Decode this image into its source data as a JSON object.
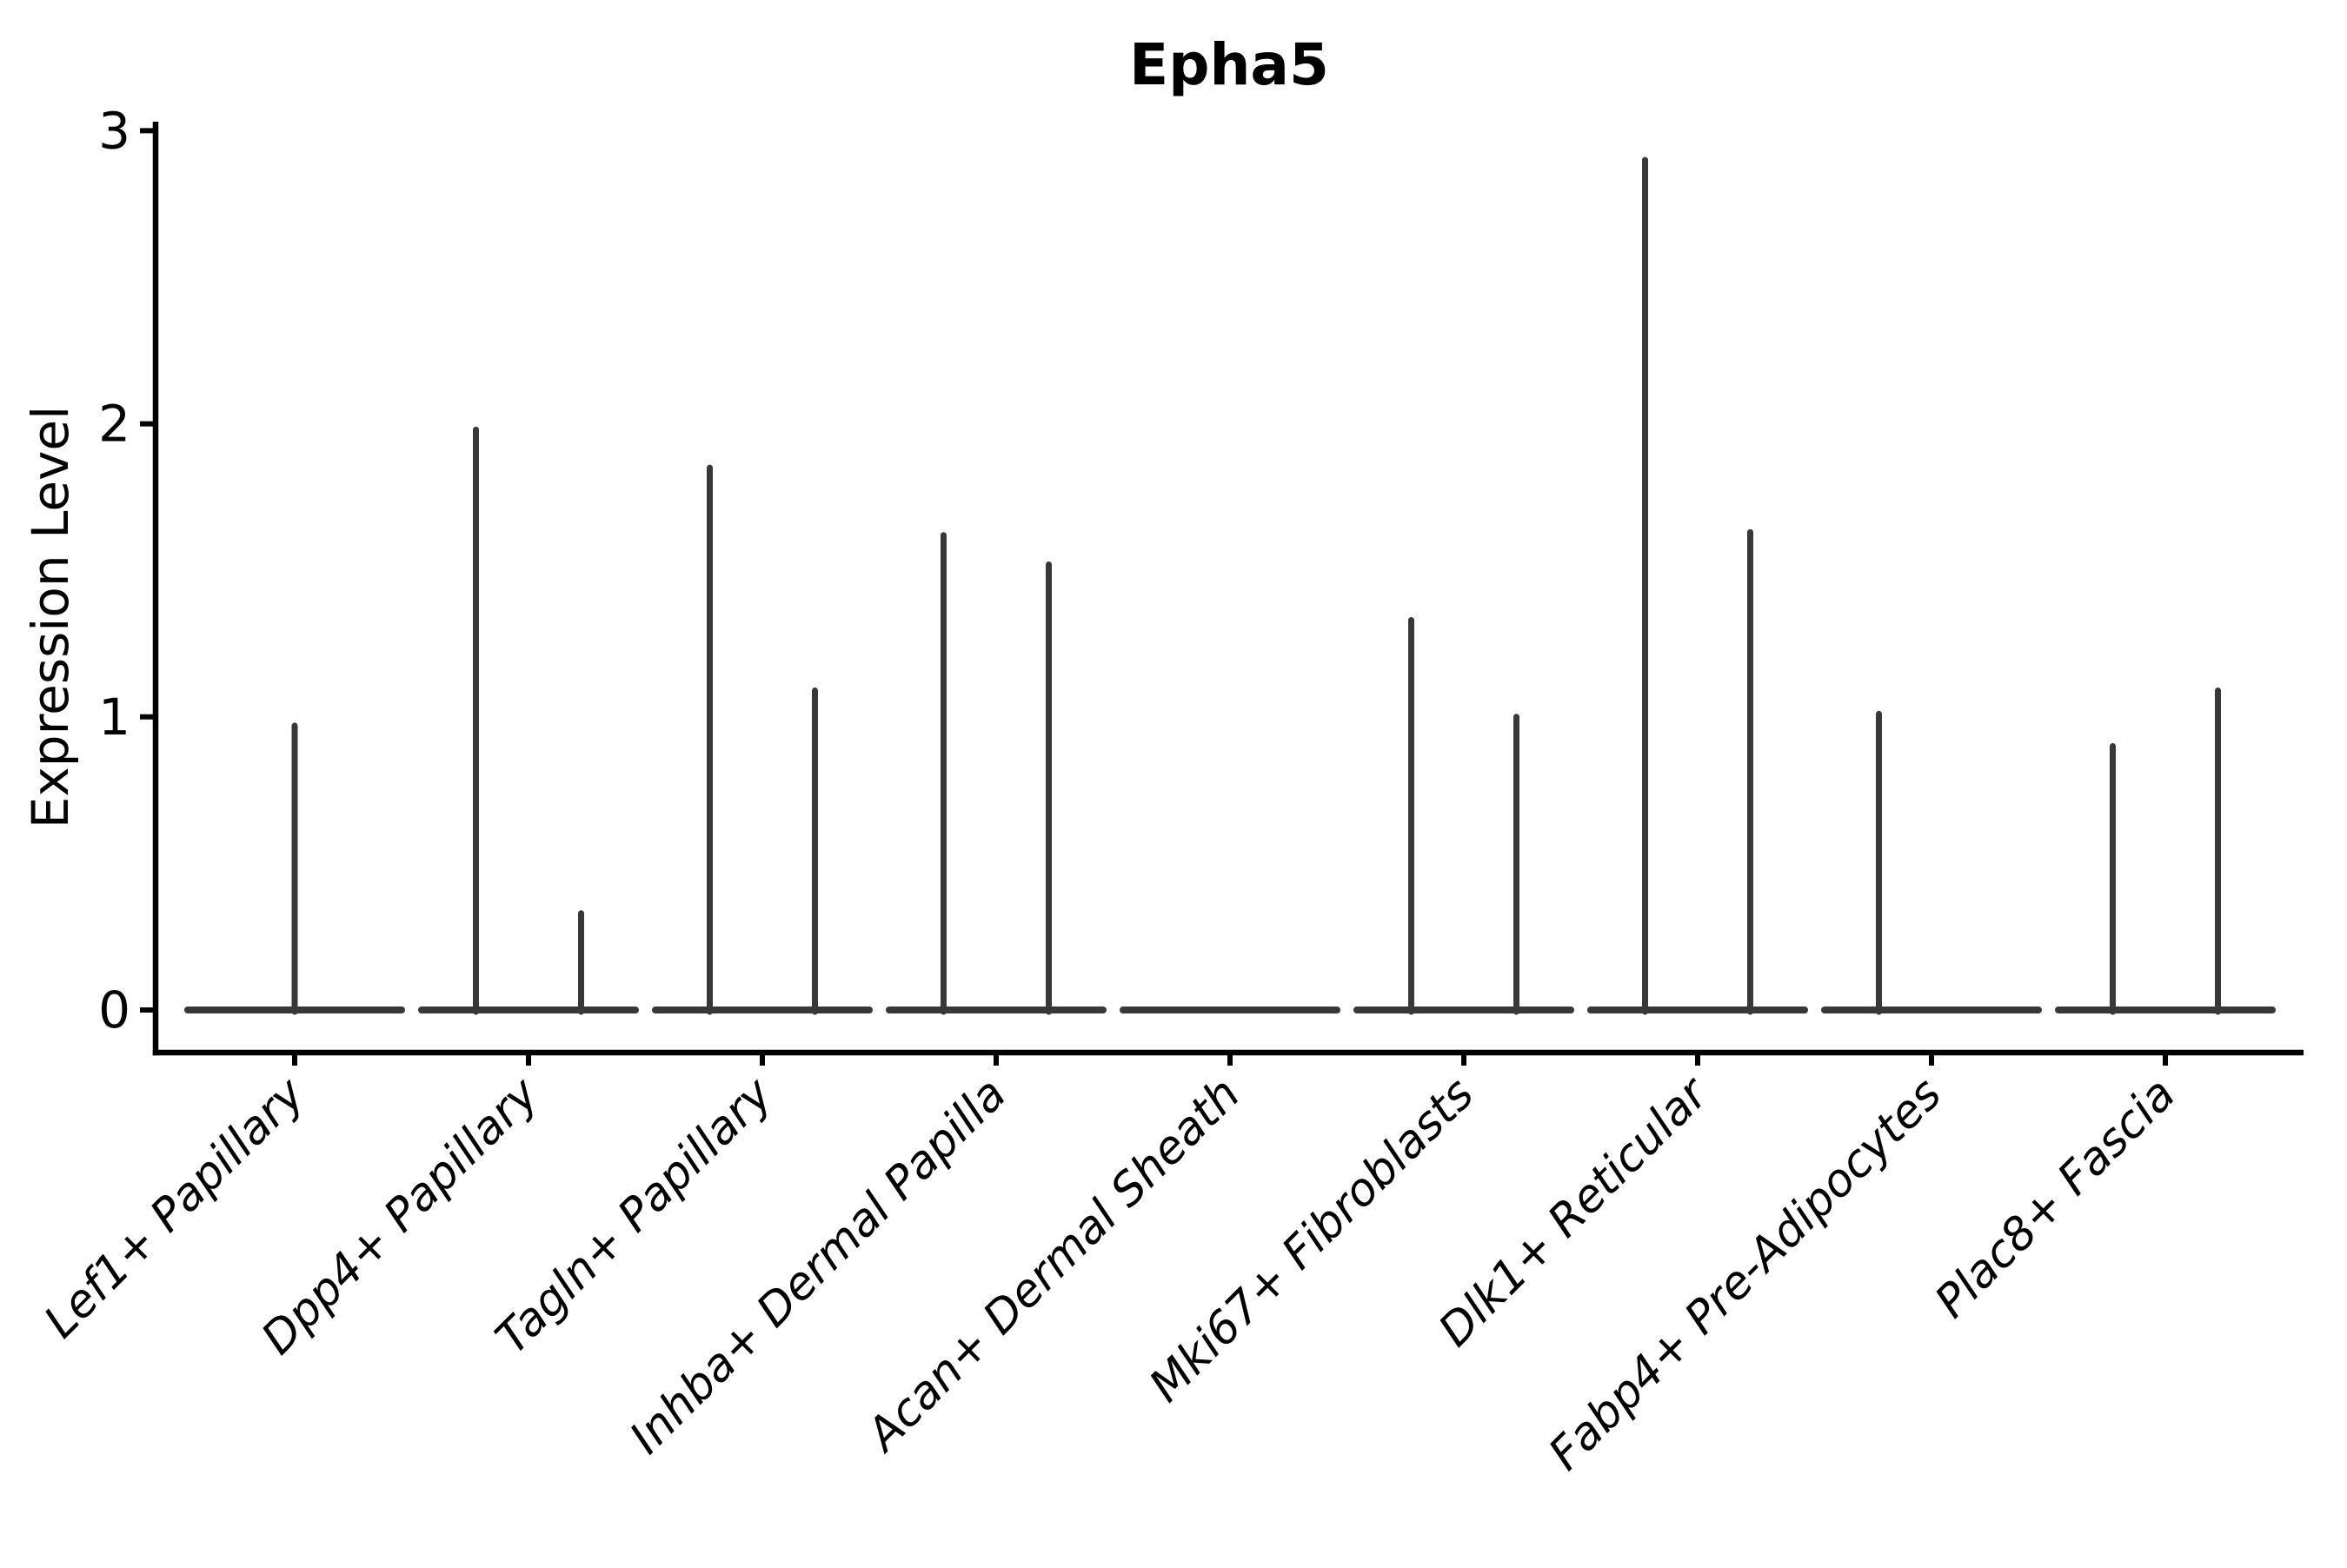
{
  "figure": {
    "title": "Epha5",
    "ylabel": "Expression Level",
    "background_color": "#ffffff",
    "violin_line_color": "#383838",
    "axis_color": "#000000"
  },
  "chart_data": {
    "type": "violin",
    "title": "Epha5",
    "xlabel": "",
    "ylabel": "Expression Level",
    "ylim": [
      0,
      3
    ],
    "yticks": [
      0,
      1,
      2,
      3
    ],
    "grid": false,
    "legend": "none",
    "x_tick_label_rotation_deg": 45,
    "note": "Seurat-style violin plot; each violin collapses to a flat horizontal base at expression 0 with a thin vertical density spike reaching its maximum expression value. Categories with two spikes contain two side-by-side (dodged) violins; 'center' means a single full-width violin.",
    "categories": [
      "Lef1+ Papillary",
      "Dpp4+ Papillary",
      "Tagln+ Papillary",
      "Inhba+ Dermal Papilla",
      "Acan+ Dermal Sheath",
      "Mki67+ Fibroblasts",
      "Dlk1+ Reticular",
      "Fabp4+ Pre-Adipocytes",
      "Plac8+ Fascia"
    ],
    "violins": [
      {
        "category": "Lef1+ Papillary",
        "spikes": [
          {
            "position": "center",
            "max": 0.97
          }
        ]
      },
      {
        "category": "Dpp4+ Papillary",
        "spikes": [
          {
            "position": "left",
            "max": 1.98
          },
          {
            "position": "right",
            "max": 0.33
          }
        ]
      },
      {
        "category": "Tagln+ Papillary",
        "spikes": [
          {
            "position": "left",
            "max": 1.85
          },
          {
            "position": "right",
            "max": 1.09
          }
        ]
      },
      {
        "category": "Inhba+ Dermal Papilla",
        "spikes": [
          {
            "position": "left",
            "max": 1.62
          },
          {
            "position": "right",
            "max": 1.52
          }
        ]
      },
      {
        "category": "Acan+ Dermal Sheath",
        "spikes": []
      },
      {
        "category": "Mki67+ Fibroblasts",
        "spikes": [
          {
            "position": "left",
            "max": 1.33
          },
          {
            "position": "right",
            "max": 1.0
          }
        ]
      },
      {
        "category": "Dlk1+ Reticular",
        "spikes": [
          {
            "position": "left",
            "max": 2.9
          },
          {
            "position": "right",
            "max": 1.63
          }
        ]
      },
      {
        "category": "Fabp4+ Pre-Adipocytes",
        "spikes": [
          {
            "position": "left",
            "max": 1.01
          }
        ]
      },
      {
        "category": "Plac8+ Fascia",
        "spikes": [
          {
            "position": "left",
            "max": 0.9
          },
          {
            "position": "right",
            "max": 1.09
          }
        ]
      }
    ]
  }
}
